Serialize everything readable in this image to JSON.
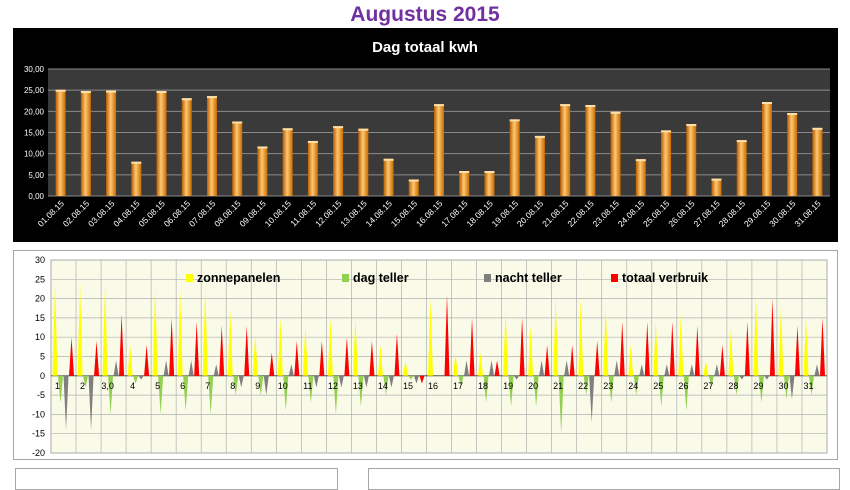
{
  "page": {
    "title": "Augustus 2015"
  },
  "chart_data": [
    {
      "type": "bar",
      "title": "Dag totaal kwh",
      "xlabel": "",
      "ylabel": "",
      "ylim": [
        0,
        30
      ],
      "yticks": [
        "0,00",
        "5,00",
        "10,00",
        "15,00",
        "20,00",
        "25,00",
        "30,00"
      ],
      "grid": true,
      "categories": [
        "01.08.15",
        "02.08.15",
        "03.08.15",
        "04.08.15",
        "05.08.15",
        "06.08.15",
        "07.08.15",
        "08.08.15",
        "09.08.15",
        "10.08.15",
        "11.08.15",
        "12.08.15",
        "13.08.15",
        "14.08.15",
        "15.08.15",
        "16.08.15",
        "17.08.15",
        "18.08.15",
        "19.08.15",
        "20.08.15",
        "21.08.15",
        "22.08.15",
        "23.08.15",
        "24.08.15",
        "25.08.15",
        "26.08.15",
        "27.08.15",
        "28.08.15",
        "29.08.15",
        "30.08.15",
        "31.08.15"
      ],
      "values": [
        25.1,
        24.8,
        24.9,
        8.1,
        24.8,
        23.1,
        23.6,
        17.6,
        11.7,
        16.0,
        13.0,
        16.5,
        15.9,
        8.8,
        3.9,
        21.7,
        5.9,
        5.9,
        18.1,
        14.2,
        21.7,
        21.5,
        19.9,
        8.7,
        15.5,
        17.0,
        4.1,
        13.2,
        22.2,
        19.6,
        16.1
      ],
      "colors": {
        "background": "#000000",
        "plot": "#3a3a3a",
        "bar": "#f28c1e",
        "text": "#ffffff"
      }
    },
    {
      "type": "bar",
      "title": "",
      "ylim": [
        -20,
        30
      ],
      "yticks": [
        "-20",
        "-15",
        "-10",
        "-5",
        "0",
        "5",
        "10",
        "15",
        "20",
        "25",
        "30"
      ],
      "grid": true,
      "categories": [
        "1",
        "2",
        "3,0",
        "4",
        "5",
        "6",
        "7",
        "8",
        "9",
        "10",
        "11",
        "12",
        "13",
        "14",
        "15",
        "16",
        "17",
        "18",
        "19",
        "20",
        "21",
        "22",
        "23",
        "24",
        "25",
        "26",
        "27",
        "28",
        "29",
        "30",
        "31"
      ],
      "legend_position": "top",
      "series": [
        {
          "name": "zonnepanelen",
          "color": "#ffff00",
          "values": [
            24,
            24,
            24,
            8,
            23,
            22,
            23,
            17,
            11,
            15,
            13,
            15,
            15,
            8,
            4,
            20,
            6,
            6,
            17,
            13,
            20,
            20,
            18,
            8,
            14,
            16,
            4,
            12,
            21,
            18,
            15
          ]
        },
        {
          "name": "dag teller",
          "color": "#92d050",
          "values": [
            -7,
            -3,
            -10,
            -2,
            -10,
            -9,
            -10,
            -5,
            -5,
            -9,
            -7,
            -10,
            -8,
            -5,
            -1,
            0,
            -3,
            -7,
            -8,
            -8,
            -15,
            -5,
            -7,
            -5,
            -8,
            -9,
            -3,
            -5,
            -7,
            -6,
            -5
          ]
        },
        {
          "name": "nacht teller",
          "color": "#7f7f7f",
          "values": [
            -14,
            -14,
            4,
            -1,
            4,
            4,
            3,
            -3,
            -5,
            3,
            -3,
            -3,
            -3,
            -3,
            -2,
            0,
            4,
            4,
            -1,
            4,
            4,
            -12,
            4,
            3,
            3,
            3,
            3,
            -1,
            -1,
            -6,
            3
          ]
        },
        {
          "name": "totaal verbruik",
          "color": "#ff0000",
          "values": [
            10,
            9,
            16,
            8,
            15,
            14,
            13,
            13,
            6,
            9,
            9,
            10,
            9,
            11,
            -2,
            21,
            15,
            4,
            15,
            8,
            8,
            9,
            14,
            14,
            14,
            13,
            8,
            14,
            20,
            13,
            15
          ]
        }
      ],
      "colors": {
        "plot": "#fafae8",
        "grid": "#b0b0b0",
        "text": "#000000"
      }
    }
  ]
}
